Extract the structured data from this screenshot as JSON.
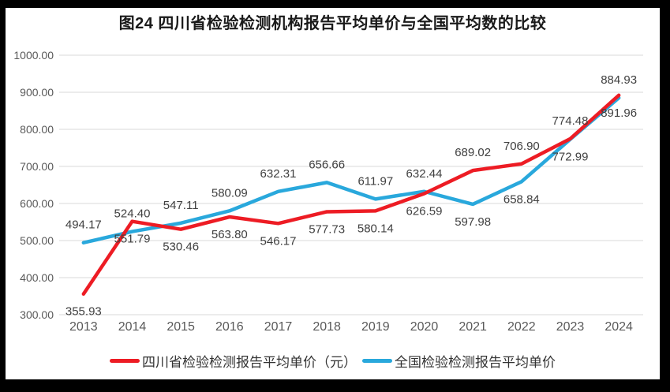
{
  "window": {
    "background": "#000000",
    "canvas_background": "#ffffff"
  },
  "chart_data": {
    "type": "line",
    "title": "图24  四川省检验检测机构报告平均单价与全国平均数的比较",
    "xlabel": "",
    "ylabel": "",
    "categories": [
      "2013",
      "2014",
      "2015",
      "2016",
      "2017",
      "2018",
      "2019",
      "2020",
      "2021",
      "2022",
      "2023",
      "2024"
    ],
    "series": [
      {
        "name": "四川省检验检测报告平均单价（元）",
        "color": "#ED1C24",
        "values": [
          355.93,
          551.79,
          530.46,
          563.8,
          546.17,
          577.73,
          580.14,
          626.59,
          689.02,
          706.9,
          774.48,
          891.96
        ],
        "label_positions": [
          "below",
          "below",
          "below",
          "below",
          "below",
          "below",
          "below",
          "below",
          "above",
          "above",
          "above",
          "below"
        ]
      },
      {
        "name": "全国检验检测报告平均单价",
        "color": "#29A8DC",
        "values": [
          494.17,
          524.4,
          547.11,
          580.09,
          632.31,
          656.66,
          611.97,
          632.44,
          597.98,
          658.84,
          772.99,
          884.93
        ],
        "label_positions": [
          "above",
          "above",
          "above",
          "above",
          "above",
          "above",
          "above",
          "above",
          "below",
          "below",
          "below",
          "above"
        ]
      }
    ],
    "ylim": [
      300,
      1000
    ],
    "y_ticks": [
      "300.00",
      "400.00",
      "500.00",
      "600.00",
      "700.00",
      "800.00",
      "900.00",
      "1000.00"
    ],
    "grid": true,
    "legend_position": "bottom",
    "value_decimals": 2
  },
  "colors": {
    "grid": "#D9D9D9",
    "axis_text": "#595959",
    "data_label_text": "#404040",
    "title_text": "#1A1A1A",
    "legend_text": "#333333"
  }
}
